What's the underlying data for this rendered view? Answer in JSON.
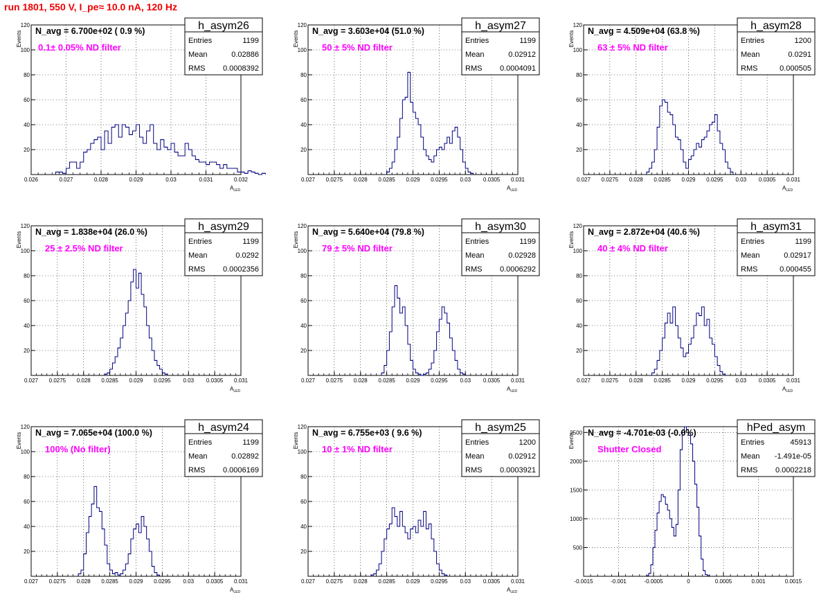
{
  "page": {
    "title": "run 1801,   550 V, I_pe≈ 10.0 nA, 120 Hz"
  },
  "chart_data": [
    {
      "type": "histogram",
      "name": "h_asym26",
      "stats": {
        "entries": "1199",
        "mean": "0.02886",
        "rms": "0.0008392"
      },
      "annotation": "N_avg = 6.700e+02 ( 0.9 %)",
      "filter_label": "0.1± 0.05% ND filter",
      "xlabel": "A",
      "xlabel_sub": "LED",
      "ylabel": "Events",
      "xlim": [
        0.026,
        0.032
      ],
      "ylim": [
        0,
        120
      ],
      "xticks": [
        "0.026",
        "0.027",
        "0.028",
        "0.029",
        "0.03",
        "0.031",
        "0.032"
      ],
      "yticks": [
        "20",
        "40",
        "60",
        "80",
        "100",
        "120"
      ],
      "bin_start": 0.0267,
      "bin_width": 0.0001,
      "values": [
        2,
        2,
        1,
        5,
        10,
        10,
        5,
        10,
        18,
        20,
        25,
        28,
        30,
        20,
        35,
        25,
        38,
        40,
        30,
        40,
        38,
        32,
        35,
        40,
        30,
        25,
        35,
        40,
        25,
        20,
        28,
        22,
        20,
        25,
        18,
        15,
        15,
        25,
        20,
        15,
        12,
        10,
        10,
        8,
        10,
        10,
        8,
        5,
        8,
        5,
        5,
        5,
        2,
        2,
        1,
        3,
        2,
        1,
        0,
        1
      ]
    },
    {
      "type": "histogram",
      "name": "h_asym27",
      "stats": {
        "entries": "1199",
        "mean": "0.02912",
        "rms": "0.0004091"
      },
      "annotation": "N_avg = 3.603e+04 (51.0 %)",
      "filter_label": "50 ± 5% ND filter",
      "xlabel": "A",
      "xlabel_sub": "LED",
      "ylabel": "Events",
      "xlim": [
        0.027,
        0.031
      ],
      "ylim": [
        0,
        120
      ],
      "xticks": [
        "0.027",
        "0.0275",
        "0.028",
        "0.0285",
        "0.029",
        "0.0295",
        "0.03",
        "0.0305",
        "0.031"
      ],
      "yticks": [
        "20",
        "40",
        "60",
        "80",
        "100",
        "120"
      ],
      "bin_start": 0.0285,
      "bin_width": 5e-05,
      "values": [
        2,
        5,
        10,
        20,
        30,
        45,
        60,
        62,
        82,
        58,
        50,
        45,
        40,
        30,
        20,
        15,
        12,
        10,
        15,
        20,
        22,
        20,
        25,
        30,
        25,
        35,
        38,
        30,
        20,
        10,
        5,
        2,
        1
      ]
    },
    {
      "type": "histogram",
      "name": "h_asym28",
      "stats": {
        "entries": "1200",
        "mean": "0.0291",
        "rms": "0.000505"
      },
      "annotation": "N_avg = 4.509e+04 (63.8 %)",
      "filter_label": "63 ± 5% ND filter",
      "xlabel": "A",
      "xlabel_sub": "LED",
      "ylabel": "Events",
      "xlim": [
        0.027,
        0.031
      ],
      "ylim": [
        0,
        120
      ],
      "xticks": [
        "0.027",
        "0.0275",
        "0.028",
        "0.0285",
        "0.029",
        "0.0295",
        "0.03",
        "0.0305",
        "0.031"
      ],
      "yticks": [
        "20",
        "40",
        "60",
        "80",
        "100",
        "120"
      ],
      "bin_start": 0.0282,
      "bin_width": 5e-05,
      "values": [
        2,
        5,
        10,
        20,
        38,
        55,
        60,
        58,
        50,
        48,
        40,
        30,
        28,
        20,
        10,
        5,
        12,
        15,
        20,
        25,
        22,
        28,
        30,
        35,
        40,
        42,
        48,
        35,
        25,
        20,
        10,
        5,
        2
      ]
    },
    {
      "type": "histogram",
      "name": "h_asym29",
      "stats": {
        "entries": "1199",
        "mean": "0.0292",
        "rms": "0.0002356"
      },
      "annotation": "N_avg = 1.838e+04 (26.0 %)",
      "filter_label": "25 ± 2.5% ND filter",
      "xlabel": "A",
      "xlabel_sub": "LED",
      "ylabel": "Events",
      "xlim": [
        0.027,
        0.031
      ],
      "ylim": [
        0,
        120
      ],
      "xticks": [
        "0.027",
        "0.0275",
        "0.028",
        "0.0285",
        "0.029",
        "0.0295",
        "0.03",
        "0.0305",
        "0.031"
      ],
      "yticks": [
        "20",
        "40",
        "60",
        "80",
        "100",
        "120"
      ],
      "bin_start": 0.0284,
      "bin_width": 5e-05,
      "values": [
        1,
        2,
        5,
        10,
        15,
        22,
        30,
        40,
        50,
        60,
        75,
        85,
        70,
        82,
        65,
        55,
        40,
        30,
        20,
        12,
        8,
        5,
        2,
        1
      ]
    },
    {
      "type": "histogram",
      "name": "h_asym30",
      "stats": {
        "entries": "1199",
        "mean": "0.02928",
        "rms": "0.0006292"
      },
      "annotation": "N_avg = 5.640e+04 (79.8 %)",
      "filter_label": "79 ± 5% ND filter",
      "xlabel": "A",
      "xlabel_sub": "LED",
      "ylabel": "Events",
      "xlim": [
        0.027,
        0.031
      ],
      "ylim": [
        0,
        120
      ],
      "xticks": [
        "0.027",
        "0.0275",
        "0.028",
        "0.0285",
        "0.029",
        "0.0295",
        "0.03",
        "0.0305",
        "0.031"
      ],
      "yticks": [
        "20",
        "40",
        "60",
        "80",
        "100",
        "120"
      ],
      "bin_start": 0.0284,
      "bin_width": 5e-05,
      "values": [
        2,
        8,
        20,
        35,
        55,
        72,
        62,
        50,
        55,
        40,
        25,
        12,
        5,
        2,
        1,
        0,
        1,
        2,
        5,
        10,
        20,
        35,
        45,
        55,
        50,
        42,
        30,
        20,
        12,
        5,
        2,
        1
      ]
    },
    {
      "type": "histogram",
      "name": "h_asym31",
      "stats": {
        "entries": "1199",
        "mean": "0.02917",
        "rms": "0.000455"
      },
      "annotation": "N_avg = 2.872e+04 (40.6 %)",
      "filter_label": "40 ± 4% ND filter",
      "xlabel": "A",
      "xlabel_sub": "LED",
      "ylabel": "Events",
      "xlim": [
        0.027,
        0.031
      ],
      "ylim": [
        0,
        120
      ],
      "xticks": [
        "0.027",
        "0.0275",
        "0.028",
        "0.0285",
        "0.029",
        "0.0295",
        "0.03",
        "0.0305",
        "0.031"
      ],
      "yticks": [
        "20",
        "40",
        "60",
        "80",
        "100",
        "120"
      ],
      "bin_start": 0.0283,
      "bin_width": 5e-05,
      "values": [
        2,
        5,
        12,
        20,
        30,
        42,
        50,
        42,
        55,
        40,
        30,
        22,
        15,
        18,
        25,
        30,
        40,
        50,
        48,
        55,
        40,
        45,
        30,
        25,
        15,
        8,
        3,
        1
      ]
    },
    {
      "type": "histogram",
      "name": "h_asym24",
      "stats": {
        "entries": "1199",
        "mean": "0.02892",
        "rms": "0.0006169"
      },
      "annotation": "N_avg = 7.065e+04 (100.0 %)",
      "filter_label": "100% (No filter)",
      "xlabel": "A",
      "xlabel_sub": "LED",
      "ylabel": "Events",
      "xlim": [
        0.027,
        0.031
      ],
      "ylim": [
        0,
        120
      ],
      "xticks": [
        "0.027",
        "0.0275",
        "0.028",
        "0.0285",
        "0.029",
        "0.0295",
        "0.03",
        "0.0305",
        "0.031"
      ],
      "yticks": [
        "20",
        "40",
        "60",
        "80",
        "100",
        "120"
      ],
      "bin_start": 0.0279,
      "bin_width": 5e-05,
      "values": [
        2,
        5,
        18,
        35,
        48,
        58,
        72,
        55,
        52,
        38,
        25,
        10,
        5,
        2,
        3,
        1,
        2,
        5,
        10,
        18,
        30,
        38,
        42,
        35,
        48,
        40,
        30,
        20,
        8,
        3,
        1
      ]
    },
    {
      "type": "histogram",
      "name": "h_asym25",
      "stats": {
        "entries": "1200",
        "mean": "0.02912",
        "rms": "0.0003921"
      },
      "annotation": "N_avg = 6.755e+03 ( 9.6 %)",
      "filter_label": "10 ± 1% ND filter",
      "xlabel": "A",
      "xlabel_sub": "LED",
      "ylabel": "Events",
      "xlim": [
        0.027,
        0.031
      ],
      "ylim": [
        0,
        120
      ],
      "xticks": [
        "0.027",
        "0.0275",
        "0.028",
        "0.0285",
        "0.029",
        "0.0295",
        "0.03",
        "0.0305",
        "0.031"
      ],
      "yticks": [
        "20",
        "40",
        "60",
        "80",
        "100",
        "120"
      ],
      "bin_start": 0.0282,
      "bin_width": 5e-05,
      "values": [
        1,
        2,
        5,
        10,
        20,
        30,
        38,
        42,
        55,
        48,
        40,
        52,
        40,
        35,
        30,
        38,
        40,
        35,
        45,
        40,
        52,
        38,
        42,
        30,
        20,
        10,
        5,
        2,
        1
      ]
    },
    {
      "type": "histogram",
      "name": "hPed_asym",
      "stats": {
        "entries": "45913",
        "mean": "-1.491e-05",
        "rms": "0.0002218"
      },
      "annotation": "N_avg = -4.701e-03 (-0.0%)",
      "filter_label": "Shutter Closed",
      "xlabel": "",
      "xlabel_sub": "",
      "ylabel": "Events",
      "xlim": [
        -0.0015,
        0.0015
      ],
      "ylim": [
        0,
        2600
      ],
      "xticks": [
        "-0.0015",
        "-0.001",
        "-0.0005",
        "0",
        "0.0005",
        "0.001",
        "0.0015"
      ],
      "yticks": [
        "500",
        "1000",
        "1500",
        "2000",
        "2500"
      ],
      "bin_start": -0.0006,
      "bin_width": 3e-05,
      "values": [
        10,
        50,
        200,
        500,
        800,
        1100,
        1300,
        1420,
        1380,
        1250,
        1150,
        1000,
        850,
        700,
        900,
        1500,
        2200,
        2500,
        2600,
        2550,
        2450,
        2300,
        2000,
        1600,
        1200,
        700,
        300,
        100,
        30,
        10
      ]
    }
  ]
}
